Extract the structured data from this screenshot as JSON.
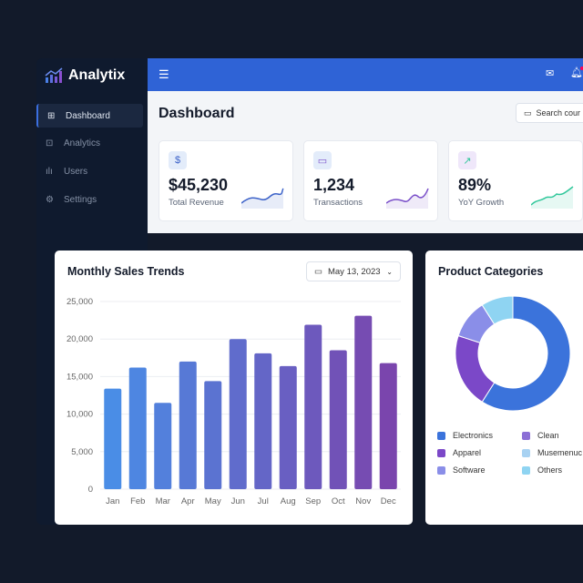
{
  "app": {
    "name": "Analytix"
  },
  "sidebar": {
    "items": [
      {
        "label": "Dashboard",
        "icon": "grid-icon",
        "active": true
      },
      {
        "label": "Analytics",
        "icon": "chart-icon"
      },
      {
        "label": "Users",
        "icon": "bars-icon"
      },
      {
        "label": "Settings",
        "icon": "gear-icon"
      }
    ]
  },
  "header": {
    "title": "Dashboard",
    "search_placeholder": "Search cour"
  },
  "stats": [
    {
      "value": "$45,230",
      "label": "Total Revenue",
      "icon": "dollar-icon",
      "color": "#3d63c9"
    },
    {
      "value": "1,234",
      "label": "Transactions",
      "icon": "card-icon",
      "color": "#7a4fc9"
    },
    {
      "value": "89%",
      "label": "YoY Growth",
      "icon": "trend-up-icon",
      "color": "#2fc79a"
    }
  ],
  "chart_data": [
    {
      "type": "bar",
      "title": "Monthly Sales Trends",
      "date_filter": "May 13, 2023",
      "categories": [
        "Jan",
        "Feb",
        "Mar",
        "Apr",
        "May",
        "Jun",
        "Jul",
        "Aug",
        "Sep",
        "Oct",
        "Nov",
        "Dec"
      ],
      "values": [
        13400,
        16200,
        11500,
        17000,
        14400,
        20000,
        18100,
        16400,
        21900,
        18500,
        23100,
        16800
      ],
      "ylim": [
        0,
        25000
      ],
      "yticks": [
        "0",
        "5,000",
        "10,000",
        "15,000",
        "20,000",
        "25,000"
      ],
      "grid": true,
      "colors": [
        "#4a8de6",
        "#7a45ad"
      ]
    },
    {
      "type": "pie",
      "title": "Product Categories",
      "donut": true,
      "series": [
        {
          "name": "Electronics",
          "value": 59,
          "color": "#3b73db"
        },
        {
          "name": "Apparel",
          "value": 21,
          "color": "#7b48c8"
        },
        {
          "name": "Software",
          "value": 11,
          "color": "#8a8ee8"
        },
        {
          "name": "Others",
          "value": 9,
          "color": "#8fd4f2"
        },
        {
          "name": "Clean",
          "value": 0,
          "color": "#8c6fd6"
        },
        {
          "name": "Musemenuc",
          "value": 0,
          "color": "#a8d2f2"
        }
      ],
      "legend_order": [
        "Electronics",
        "Clean",
        "Apparel",
        "Musemenuc",
        "Software",
        "Others"
      ]
    }
  ]
}
